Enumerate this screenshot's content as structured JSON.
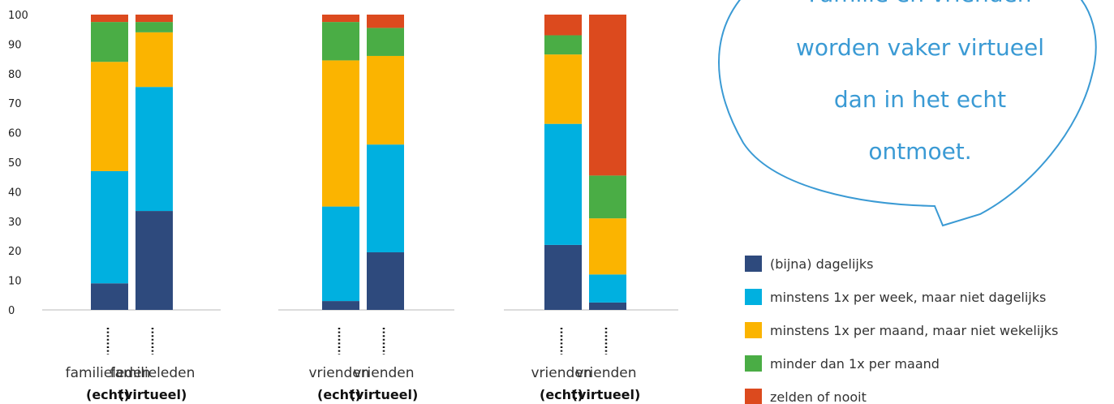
{
  "chart_data": {
    "type": "bar",
    "stacked": true,
    "ylim": [
      0,
      100
    ],
    "yticks": [
      0,
      10,
      20,
      30,
      40,
      50,
      60,
      70,
      80,
      90,
      100
    ],
    "categories": [
      {
        "name": "familieleden",
        "sub": "(echt)"
      },
      {
        "name": "familieleden",
        "sub": "(virtueel)"
      },
      {
        "name": "vrienden",
        "sub": "(echt)"
      },
      {
        "name": "vrienden",
        "sub": "(virtueel)"
      },
      {
        "name": "vrienden",
        "sub": "(echt)"
      },
      {
        "name": "vrienden",
        "sub": "(virtueel)"
      }
    ],
    "series": [
      {
        "name": "(bijna) dagelijks",
        "color": "#2e4a7d",
        "values": [
          9,
          33.5,
          3,
          19.5,
          22,
          2.5
        ]
      },
      {
        "name": "minstens 1x per week, maar niet dagelijks",
        "color": "#00b0e0",
        "values": [
          38,
          42,
          32,
          36.5,
          41,
          9.5
        ]
      },
      {
        "name": "minstens 1x per maand, maar niet wekelijks",
        "color": "#fbb400",
        "values": [
          37,
          18.5,
          49.5,
          30,
          23.5,
          19
        ]
      },
      {
        "name": "minder dan 1x per maand",
        "color": "#4aad45",
        "values": [
          13.5,
          3.5,
          13,
          9.5,
          6.5,
          14.5
        ]
      },
      {
        "name": "zelden of nooit",
        "color": "#dc4a1e",
        "values": [
          2.5,
          2.5,
          2.5,
          4.5,
          7,
          54.5
        ]
      }
    ],
    "legend_position": "bottom-right"
  },
  "bubble": {
    "lines": [
      "Familie en vrienden",
      "worden vaker virtueel",
      "dan in het echt",
      "ontmoet."
    ]
  }
}
